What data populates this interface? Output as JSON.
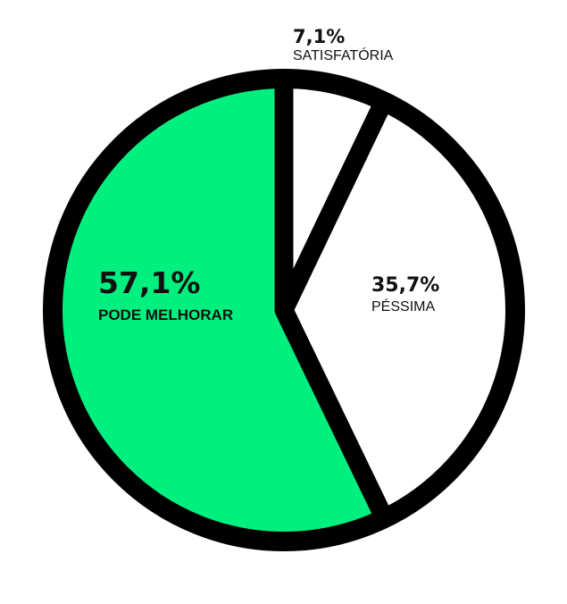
{
  "chart_data": {
    "type": "pie",
    "title": "",
    "slices": [
      {
        "name": "SATISFATÓRIA",
        "value": 7.1,
        "value_label": "7,1%",
        "color": "#ffffff"
      },
      {
        "name": "PÉSSIMA",
        "value": 35.7,
        "value_label": "35,7%",
        "color": "#ffffff"
      },
      {
        "name": "PODE MELHORAR",
        "value": 57.1,
        "value_label": "57,1%",
        "color": "#00f080"
      }
    ],
    "start_angle": "12 o'clock",
    "direction": "clockwise",
    "separator_color": "#000000"
  }
}
